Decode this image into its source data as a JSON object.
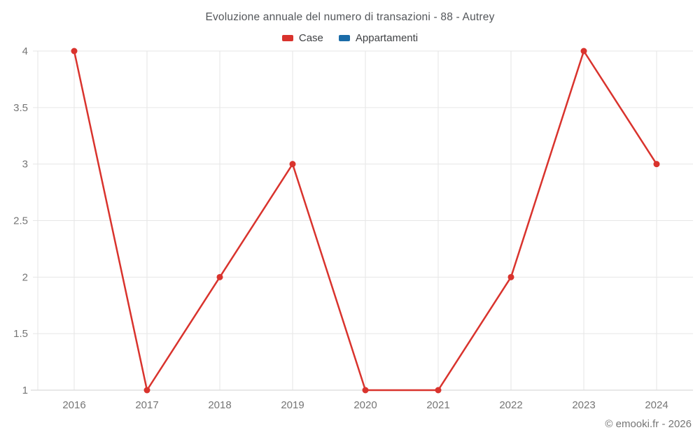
{
  "header": {
    "title": "Evoluzione annuale del numero di transazioni - 88 - Autrey"
  },
  "legend": {
    "items": [
      {
        "label": "Case",
        "color": "#d9332d"
      },
      {
        "label": "Appartamenti",
        "color": "#1b6ca8"
      }
    ]
  },
  "footer": {
    "copyright": "© emooki.fr - 2026"
  },
  "chart_data": {
    "type": "line",
    "title": "Evoluzione annuale del numero di transazioni - 88 - Autrey",
    "categories": [
      "2016",
      "2017",
      "2018",
      "2019",
      "2020",
      "2021",
      "2022",
      "2023",
      "2024"
    ],
    "series": [
      {
        "name": "Case",
        "color": "#d9332d",
        "values": [
          4,
          1,
          2,
          3,
          1,
          1,
          2,
          4,
          3
        ]
      },
      {
        "name": "Appartamenti",
        "color": "#1b6ca8",
        "values": []
      }
    ],
    "xlabel": "",
    "ylabel": "",
    "ylim": [
      1,
      4
    ],
    "yticks": [
      1,
      1.5,
      2,
      2.5,
      3,
      3.5,
      4
    ],
    "grid": true,
    "legend_position": "top",
    "line_width": 2.5,
    "marker_radius": 4.5,
    "grid_color": "#e6e6e6",
    "axis_line_color": "#d2d2d2",
    "tick_label_color": "#757575"
  }
}
